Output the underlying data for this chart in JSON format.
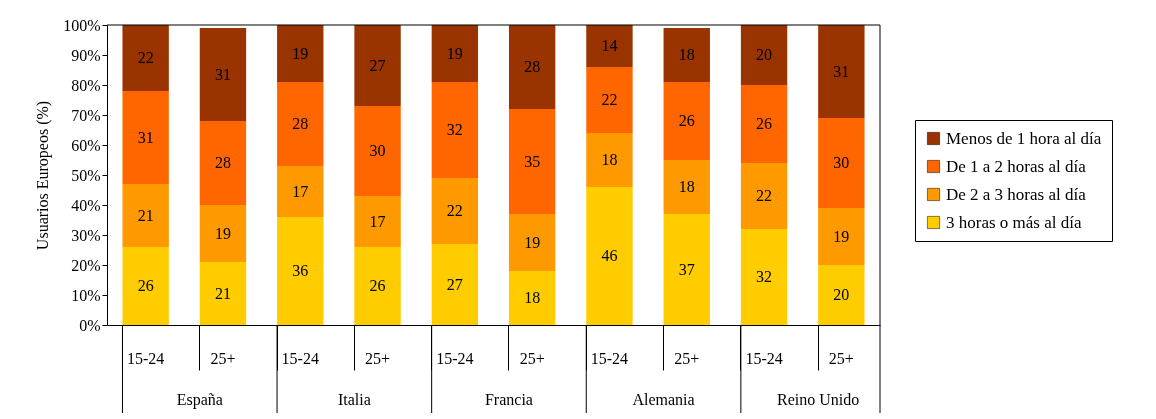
{
  "chart_data": {
    "type": "bar",
    "stacked": true,
    "ylabel": "Usuarios Europeos (%)",
    "categories": [
      "15-24",
      "25+",
      "15-24",
      "25+",
      "15-24",
      "25+",
      "15-24",
      "25+",
      "15-24",
      "25+"
    ],
    "annotations": [
      "España",
      "Italia",
      "Francia",
      "Alemania",
      "Reino Unido"
    ],
    "series": [
      {
        "name": "3 horas o más al día",
        "color": "#ffcc00",
        "values": [
          26,
          21,
          36,
          26,
          27,
          18,
          46,
          37,
          32,
          20
        ]
      },
      {
        "name": "De 2 a 3 horas al día",
        "color": "#ff9900",
        "values": [
          21,
          19,
          17,
          17,
          22,
          19,
          18,
          18,
          22,
          19
        ]
      },
      {
        "name": "De 1 a 2 horas al día",
        "color": "#ff6600",
        "values": [
          31,
          28,
          28,
          30,
          32,
          35,
          22,
          26,
          26,
          30
        ]
      },
      {
        "name": "Menos de 1 hora al día",
        "color": "#993300",
        "values": [
          22,
          31,
          19,
          27,
          19,
          28,
          14,
          18,
          20,
          31
        ]
      }
    ],
    "ylim": [
      0,
      100
    ],
    "yticks": [
      {
        "value": 0,
        "label": "0%"
      },
      {
        "value": 10,
        "label": "10%"
      },
      {
        "value": 20,
        "label": "20%"
      },
      {
        "value": 30,
        "label": "30%"
      },
      {
        "value": 40,
        "label": "40%"
      },
      {
        "value": 50,
        "label": "50%"
      },
      {
        "value": 60,
        "label": "60%"
      },
      {
        "value": 70,
        "label": "70%"
      },
      {
        "value": 80,
        "label": "80%"
      },
      {
        "value": 90,
        "label": "90%"
      },
      {
        "value": 100,
        "label": "100%"
      }
    ],
    "data_labels": true,
    "legend": "right",
    "grid": false
  }
}
